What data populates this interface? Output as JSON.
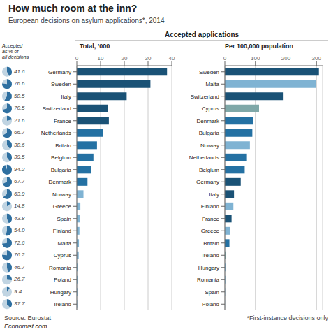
{
  "chart_data": [
    {
      "type": "bar",
      "orientation": "horizontal",
      "title": "How much room at the inn?",
      "subtitle": "European decisions on asylum applications*, 2014",
      "annotations": [
        "Accepted applications",
        "Source: Eurostat",
        "Economist.com",
        "*First-instance decisions only"
      ],
      "xlabel": "Total, ’000",
      "categories": [
        "Germany",
        "Sweden",
        "Italy",
        "Switzerland",
        "France",
        "Netherlands",
        "Britain",
        "Belgium",
        "Bulgaria",
        "Denmark",
        "Norway",
        "Greece",
        "Spain",
        "Finland",
        "Malta",
        "Cyprus",
        "Romania",
        "Poland",
        "Hungary",
        "Ireland"
      ],
      "values": [
        38.0,
        31.0,
        21.0,
        13.0,
        13.5,
        11.0,
        8.5,
        7.0,
        6.0,
        4.5,
        2.8,
        1.5,
        1.4,
        1.1,
        0.9,
        0.8,
        0.4,
        0.35,
        0.25,
        0.18
      ],
      "colors": [
        "#1a5276",
        "#1a5276",
        "#1a5276",
        "#1a5276",
        "#1a5276",
        "#2471a3",
        "#2471a3",
        "#2471a3",
        "#2471a3",
        "#2471a3",
        "#7fb3d3",
        "#7fb3d3",
        "#7fb3d3",
        "#7fb3d3",
        "#7fb3d3",
        "#7fb3d3",
        "#7fb3d3",
        "#7fb3d3",
        "#7fb3d3",
        "#7fb3d3"
      ],
      "xlim": [
        0,
        40
      ],
      "xticks": [
        0,
        10,
        20,
        30,
        40
      ],
      "grid": true
    },
    {
      "type": "bar",
      "orientation": "horizontal",
      "xlabel": "Per 100,000 population",
      "categories": [
        "Sweden",
        "Malta",
        "Switzerland",
        "Cyprus",
        "Denmark",
        "Bulgaria",
        "Norway",
        "Netherlands",
        "Belgium",
        "Germany",
        "Italy",
        "Finland",
        "France",
        "Greece",
        "Britain",
        "Ireland",
        "Hungary",
        "Romania",
        "Spain",
        "Poland"
      ],
      "values": [
        308,
        298,
        190,
        112,
        93,
        90,
        82,
        70,
        65,
        52,
        30,
        28,
        22,
        17,
        15,
        4,
        2.5,
        1.8,
        1.0,
        0.4
      ],
      "colors": [
        "#1a5276",
        "#7fb3d3",
        "#1a5276",
        "#7fa8a8",
        "#2471a3",
        "#2471a3",
        "#7fb3d3",
        "#2471a3",
        "#2471a3",
        "#1a5276",
        "#1a5276",
        "#7fb3d3",
        "#1a5276",
        "#7fb3d3",
        "#2471a3",
        "#7fa8a8",
        "#7fb3d3",
        "#7fb3d3",
        "#7fb3d3",
        "#7fb3d3"
      ],
      "xlim": [
        0,
        320
      ],
      "xticks": [
        0,
        100,
        200,
        300
      ],
      "grid": true
    },
    {
      "type": "pie",
      "title": "Accepted\nas % of\nall decisions",
      "values": [
        41.6,
        76.6,
        58.5,
        70.5,
        21.6,
        66.7,
        38.6,
        39.5,
        94.2,
        67.7,
        63.9,
        14.8,
        43.8,
        54.0,
        72.6,
        76.2,
        46.7,
        26.7,
        9.4,
        37.7
      ],
      "value_labels": [
        "41.6",
        "76.6",
        "58.5",
        "70.5",
        "21.6",
        "66.7",
        "38.6",
        "39.5",
        "94.2",
        "67.7",
        "63.9",
        "14.8",
        "43.8",
        "54.0",
        "72.6",
        "76.2",
        "46.7",
        "26.7",
        "9.4",
        "37.7"
      ],
      "color": "#2e6fa0",
      "data_labels": true
    }
  ]
}
